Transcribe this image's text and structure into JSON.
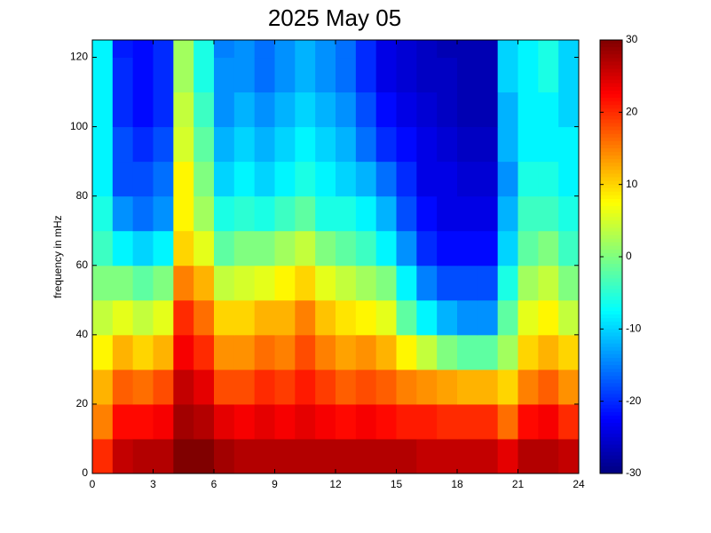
{
  "chart_data": {
    "type": "heatmap",
    "title": "2025 May 05",
    "y_label": "frequency in mHz",
    "colormap": "jet",
    "x": [
      0,
      1,
      2,
      3,
      4,
      5,
      6,
      7,
      8,
      9,
      10,
      11,
      12,
      13,
      14,
      15,
      16,
      17,
      18,
      19,
      20,
      21,
      22,
      23,
      24
    ],
    "y": [
      0,
      10,
      20,
      30,
      40,
      50,
      60,
      70,
      80,
      90,
      100,
      110,
      120,
      125
    ],
    "z": [
      [
        20,
        26,
        27,
        27,
        30,
        30,
        28,
        27,
        27,
        27,
        27,
        27,
        27,
        27,
        27,
        27,
        26,
        26,
        26,
        26,
        24,
        27,
        27,
        26
      ],
      [
        15,
        22,
        22,
        23,
        28,
        27,
        24,
        23,
        24,
        23,
        24,
        23,
        22,
        23,
        22,
        21,
        21,
        20,
        20,
        20,
        16,
        22,
        23,
        20
      ],
      [
        12,
        17,
        16,
        18,
        26,
        24,
        18,
        18,
        20,
        19,
        21,
        19,
        17,
        18,
        17,
        15,
        14,
        13,
        12,
        12,
        10,
        15,
        17,
        14
      ],
      [
        8,
        12,
        10,
        12,
        23,
        20,
        14,
        14,
        16,
        15,
        18,
        15,
        13,
        14,
        12,
        8,
        4,
        0,
        -2,
        -2,
        2,
        10,
        12,
        10
      ],
      [
        4,
        6,
        4,
        6,
        20,
        16,
        10,
        10,
        12,
        12,
        15,
        11,
        9,
        8,
        6,
        -2,
        -8,
        -12,
        -14,
        -14,
        -2,
        6,
        8,
        4
      ],
      [
        0,
        0,
        -2,
        0,
        15,
        12,
        4,
        5,
        6,
        8,
        10,
        6,
        4,
        2,
        0,
        -8,
        -15,
        -18,
        -18,
        -18,
        -6,
        2,
        4,
        0
      ],
      [
        -4,
        -8,
        -10,
        -8,
        10,
        6,
        -2,
        0,
        0,
        2,
        4,
        0,
        -2,
        -4,
        -8,
        -14,
        -20,
        -22,
        -22,
        -22,
        -10,
        -2,
        0,
        -4
      ],
      [
        -6,
        -14,
        -16,
        -14,
        8,
        2,
        -6,
        -5,
        -6,
        -4,
        -2,
        -6,
        -6,
        -8,
        -12,
        -18,
        -22,
        -24,
        -24,
        -24,
        -12,
        -4,
        -4,
        -6
      ],
      [
        -8,
        -18,
        -18,
        -16,
        8,
        0,
        -10,
        -8,
        -10,
        -8,
        -6,
        -8,
        -10,
        -12,
        -16,
        -20,
        -24,
        -24,
        -25,
        -25,
        -14,
        -6,
        -6,
        -8
      ],
      [
        -8,
        -18,
        -20,
        -18,
        5,
        -2,
        -12,
        -10,
        -12,
        -10,
        -8,
        -10,
        -12,
        -16,
        -20,
        -22,
        -24,
        -25,
        -26,
        -26,
        -12,
        -8,
        -8,
        -8
      ],
      [
        -8,
        -20,
        -22,
        -20,
        4,
        -4,
        -14,
        -12,
        -14,
        -12,
        -10,
        -12,
        -14,
        -18,
        -22,
        -24,
        -25,
        -26,
        -27,
        -27,
        -12,
        -8,
        -8,
        -10
      ],
      [
        -8,
        -20,
        -22,
        -20,
        2,
        -6,
        -14,
        -14,
        -16,
        -14,
        -12,
        -14,
        -16,
        -20,
        -24,
        -25,
        -26,
        -26,
        -27,
        -27,
        -10,
        -8,
        -6,
        -10
      ],
      [
        -8,
        -21,
        -22,
        -20,
        2,
        -6,
        -15,
        -14,
        -16,
        -14,
        -12,
        -14,
        -16,
        -20,
        -24,
        -25,
        -26,
        -27,
        -27,
        -27,
        -10,
        -8,
        -6,
        -10
      ]
    ],
    "xlim": [
      0,
      24
    ],
    "ylim": [
      0,
      125
    ],
    "xticks": [
      0,
      3,
      6,
      9,
      12,
      15,
      18,
      21,
      24
    ],
    "yticks": [
      0,
      20,
      40,
      60,
      80,
      100,
      120
    ],
    "zlim": [
      -30,
      30
    ],
    "zticks": [
      -30,
      -20,
      -10,
      0,
      10,
      20,
      30
    ]
  }
}
